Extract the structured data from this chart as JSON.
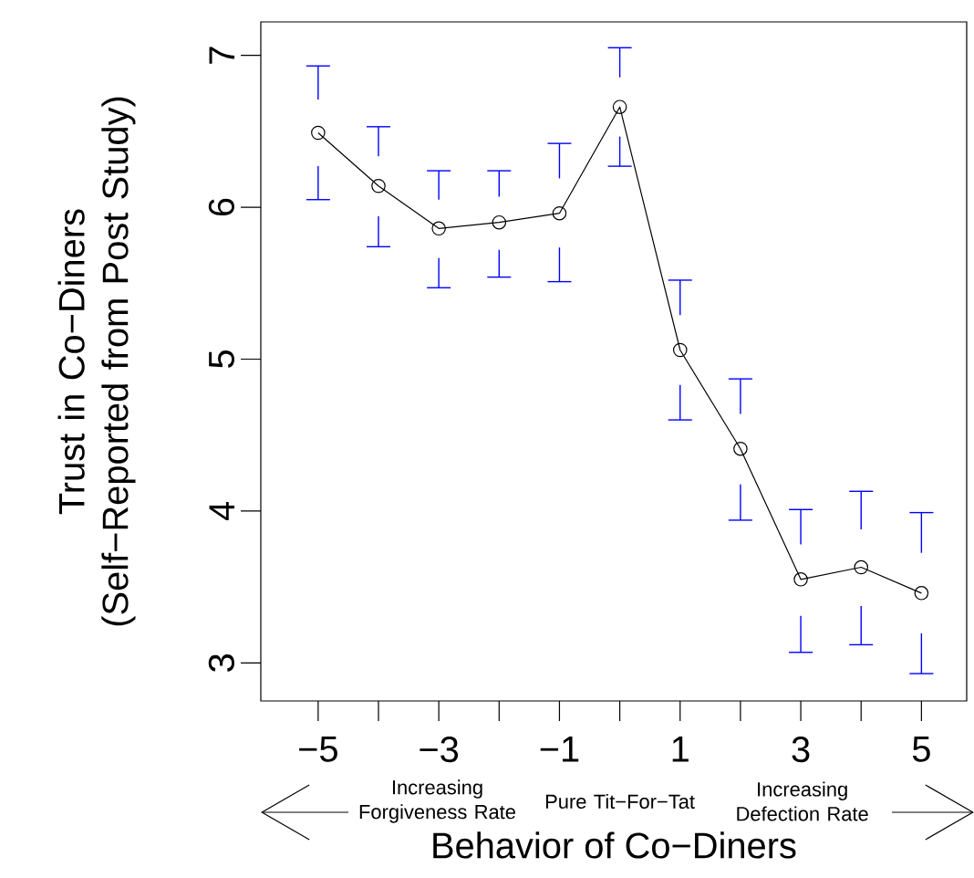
{
  "chart_data": {
    "type": "line",
    "xlabel": "Behavior of Co−Diners",
    "ylabel": "Trust in Co−Diners (Self−Reported from Post Study)",
    "annotations": [
      "Increasing Forgiveness Rate",
      "Pure Tit−For−Tat",
      "Increasing Defection Rate"
    ],
    "x": [
      -5,
      -4,
      -3,
      -2,
      -1,
      0,
      1,
      2,
      3,
      4,
      5
    ],
    "series": [
      {
        "color": "#000000",
        "values": [
          6.49,
          6.14,
          5.86,
          5.9,
          5.96,
          6.66,
          5.06,
          4.41,
          3.55,
          3.63,
          3.46
        ],
        "errors": [
          [
            6.05,
            6.93
          ],
          [
            5.74,
            6.53
          ],
          [
            5.47,
            6.24
          ],
          [
            5.54,
            6.24
          ],
          [
            5.51,
            6.42
          ],
          [
            6.27,
            7.05
          ],
          [
            4.6,
            5.52
          ],
          [
            3.94,
            4.87
          ],
          [
            3.07,
            4.01
          ],
          [
            3.12,
            4.13
          ],
          [
            2.93,
            3.99
          ]
        ]
      }
    ],
    "xlim": [
      -5.95,
      5.75
    ],
    "ylim": [
      2.75,
      7.22
    ],
    "xticks": [
      {
        "value": -5,
        "label": "−5"
      },
      {
        "value": -4,
        "label": null
      },
      {
        "value": -3,
        "label": "−3"
      },
      {
        "value": -2,
        "label": null
      },
      {
        "value": -1,
        "label": "−1"
      },
      {
        "value": 0,
        "label": null
      },
      1,
      {
        "value": 2,
        "label": null
      },
      3,
      {
        "value": 4,
        "label": null
      },
      5
    ],
    "yticks": [
      3,
      4,
      5,
      6,
      7
    ],
    "marker": "circle",
    "line_style": "solid"
  }
}
